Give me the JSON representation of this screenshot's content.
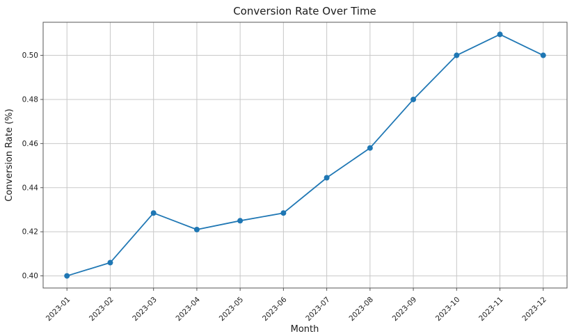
{
  "figure": {
    "title": "Conversion Rate Over Time"
  },
  "chart_data": {
    "type": "line",
    "title": "Conversion Rate Over Time",
    "xlabel": "Month",
    "ylabel": "Conversion Rate (%)",
    "categories": [
      "2023-01",
      "2023-02",
      "2023-03",
      "2023-04",
      "2023-05",
      "2023-06",
      "2023-07",
      "2023-08",
      "2023-09",
      "2023-10",
      "2023-11",
      "2023-12"
    ],
    "series": [
      {
        "name": "Conversion Rate",
        "values": [
          0.4,
          0.406,
          0.4285,
          0.421,
          0.425,
          0.4285,
          0.4445,
          0.458,
          0.48,
          0.5,
          0.5095,
          0.5
        ]
      }
    ],
    "yticks": [
      0.4,
      0.42,
      0.44,
      0.46,
      0.48,
      0.5
    ],
    "ytick_labels": [
      "0.40",
      "0.42",
      "0.44",
      "0.46",
      "0.48",
      "0.50"
    ],
    "ylim": [
      0.3945,
      0.515
    ],
    "grid": true,
    "legend_position": "none",
    "colors": {
      "line": "#1f77b4",
      "marker": "#1f77b4",
      "grid": "#c8c8c8",
      "spine": "#555555",
      "text": "#1a1a1a",
      "background": "#ffffff"
    },
    "marker_style": "circle",
    "x_tick_rotation_deg": 45
  }
}
